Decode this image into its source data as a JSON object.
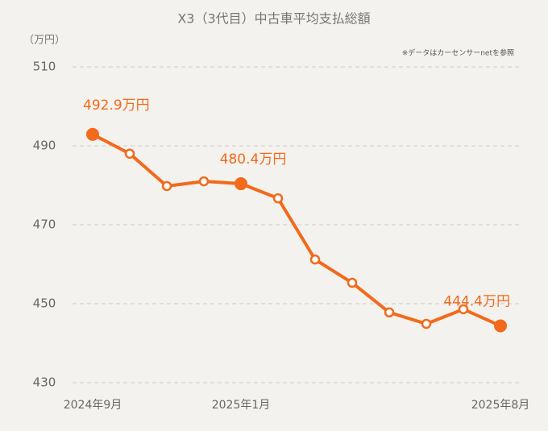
{
  "chart_data": {
    "type": "line",
    "title": "X3（3代目）中古車平均支払総額",
    "y_label": "（万円）",
    "note": "※データはカーセンサーnetを参照",
    "categories": [
      "2024年9月",
      null,
      null,
      null,
      "2025年1月",
      null,
      null,
      null,
      null,
      null,
      null,
      "2025年8月"
    ],
    "series": [
      {
        "name": "平均支払総額",
        "color": "#f26a1b",
        "values": [
          492.9,
          488.0,
          479.8,
          481.0,
          480.4,
          476.7,
          461.2,
          455.3,
          447.8,
          444.9,
          448.6,
          444.4
        ],
        "value_labels": [
          "492.9万円",
          null,
          null,
          null,
          "480.4万円",
          null,
          null,
          null,
          null,
          null,
          null,
          "444.4万円"
        ]
      }
    ],
    "ylim": [
      430,
      510
    ],
    "yticks": [
      430,
      450,
      470,
      490,
      510
    ],
    "grid": true
  }
}
